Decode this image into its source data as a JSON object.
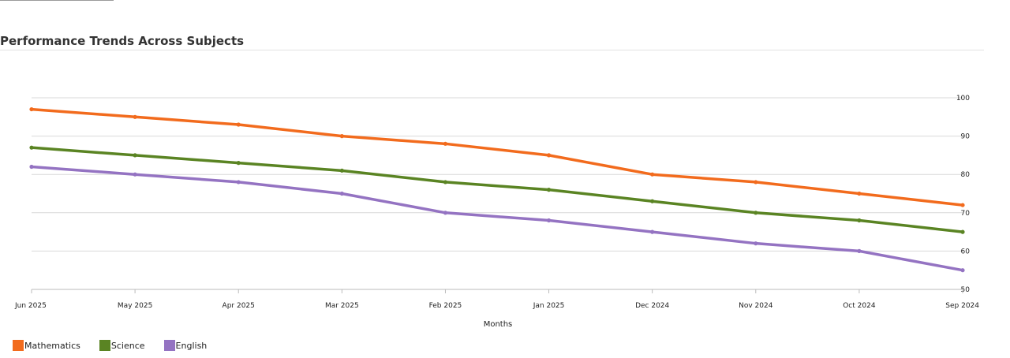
{
  "chart_data": {
    "type": "line",
    "title": "Performance Trends Across Subjects",
    "xlabel": "Months",
    "ylabel": "",
    "categories": [
      "Jun 2025",
      "May 2025",
      "Apr 2025",
      "Mar 2025",
      "Feb 2025",
      "Jan 2025",
      "Dec 2024",
      "Nov 2024",
      "Oct 2024",
      "Sep 2024"
    ],
    "ylim": [
      50,
      100
    ],
    "yticks": [
      50,
      60,
      70,
      80,
      90,
      100
    ],
    "y_axis_side": "right",
    "grid": true,
    "legend": "bottom-left",
    "series": [
      {
        "name": "Mathematics",
        "color": "#f26b1d",
        "values": [
          97,
          95,
          93,
          90,
          88,
          85,
          80,
          78,
          75,
          72
        ]
      },
      {
        "name": "Science",
        "color": "#5a8423",
        "values": [
          87,
          85,
          83,
          81,
          78,
          76,
          73,
          70,
          68,
          65
        ]
      },
      {
        "name": "English",
        "color": "#9473c2",
        "values": [
          82,
          80,
          78,
          75,
          70,
          68,
          65,
          62,
          60,
          55
        ]
      }
    ]
  }
}
